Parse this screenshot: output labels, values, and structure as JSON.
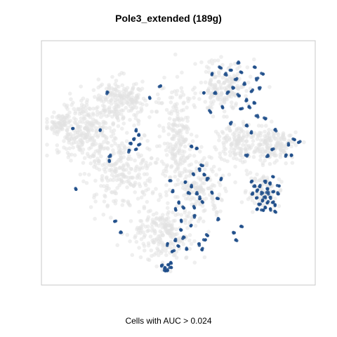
{
  "chart_data": {
    "type": "scatter",
    "title": "Pole3_extended (189g)",
    "xlabel": "Cells with AUC > 0.024",
    "ylabel": "",
    "grid": false,
    "legend": "none",
    "colors": {
      "background_cells": "#e2e2e2",
      "active_cells": "#1f4e8a",
      "frame": "#c8c8c8"
    },
    "background_clusters": [
      {
        "cx": 0.15,
        "cy": 0.36,
        "rx": 0.11,
        "ry": 0.12,
        "n": 280
      },
      {
        "cx": 0.28,
        "cy": 0.23,
        "rx": 0.11,
        "ry": 0.08,
        "n": 200
      },
      {
        "cx": 0.28,
        "cy": 0.52,
        "rx": 0.12,
        "ry": 0.14,
        "n": 240
      },
      {
        "cx": 0.5,
        "cy": 0.4,
        "rx": 0.06,
        "ry": 0.2,
        "n": 200
      },
      {
        "cx": 0.45,
        "cy": 0.8,
        "rx": 0.11,
        "ry": 0.11,
        "n": 230
      },
      {
        "cx": 0.58,
        "cy": 0.6,
        "rx": 0.09,
        "ry": 0.11,
        "n": 160
      },
      {
        "cx": 0.67,
        "cy": 0.17,
        "rx": 0.09,
        "ry": 0.1,
        "n": 180
      },
      {
        "cx": 0.74,
        "cy": 0.42,
        "rx": 0.09,
        "ry": 0.08,
        "n": 150
      },
      {
        "cx": 0.87,
        "cy": 0.42,
        "rx": 0.08,
        "ry": 0.06,
        "n": 140
      },
      {
        "cx": 0.82,
        "cy": 0.62,
        "rx": 0.06,
        "ry": 0.07,
        "n": 100
      },
      {
        "cx": 0.05,
        "cy": 0.34,
        "rx": 0.04,
        "ry": 0.04,
        "n": 50
      }
    ],
    "highlighted_points": [
      [
        0.66,
        0.09
      ],
      [
        0.68,
        0.12
      ],
      [
        0.7,
        0.1
      ],
      [
        0.72,
        0.14
      ],
      [
        0.74,
        0.11
      ],
      [
        0.75,
        0.16
      ],
      [
        0.71,
        0.18
      ],
      [
        0.69,
        0.2
      ],
      [
        0.73,
        0.21
      ],
      [
        0.76,
        0.23
      ],
      [
        0.78,
        0.19
      ],
      [
        0.77,
        0.26
      ],
      [
        0.74,
        0.27
      ],
      [
        0.79,
        0.09
      ],
      [
        0.8,
        0.14
      ],
      [
        0.82,
        0.12
      ],
      [
        0.81,
        0.18
      ],
      [
        0.79,
        0.24
      ],
      [
        0.73,
        0.07
      ],
      [
        0.63,
        0.12
      ],
      [
        0.64,
        0.2
      ],
      [
        0.6,
        0.2
      ],
      [
        0.62,
        0.28
      ],
      [
        0.67,
        0.26
      ],
      [
        0.7,
        0.33
      ],
      [
        0.76,
        0.34
      ],
      [
        0.8,
        0.3
      ],
      [
        0.78,
        0.37
      ],
      [
        0.83,
        0.31
      ],
      [
        0.43,
        0.17
      ],
      [
        0.23,
        0.2
      ],
      [
        0.39,
        0.22
      ],
      [
        0.1,
        0.35
      ],
      [
        0.2,
        0.36
      ],
      [
        0.34,
        0.36
      ],
      [
        0.35,
        0.38
      ],
      [
        0.33,
        0.4
      ],
      [
        0.32,
        0.42
      ],
      [
        0.34,
        0.44
      ],
      [
        0.35,
        0.42
      ],
      [
        0.31,
        0.45
      ],
      [
        0.24,
        0.47
      ],
      [
        0.24,
        0.49
      ],
      [
        0.55,
        0.43
      ],
      [
        0.57,
        0.44
      ],
      [
        0.59,
        0.51
      ],
      [
        0.58,
        0.53
      ],
      [
        0.56,
        0.55
      ],
      [
        0.6,
        0.55
      ],
      [
        0.61,
        0.57
      ],
      [
        0.53,
        0.58
      ],
      [
        0.55,
        0.6
      ],
      [
        0.54,
        0.63
      ],
      [
        0.57,
        0.63
      ],
      [
        0.58,
        0.65
      ],
      [
        0.59,
        0.67
      ],
      [
        0.63,
        0.63
      ],
      [
        0.65,
        0.65
      ],
      [
        0.66,
        0.57
      ],
      [
        0.56,
        0.69
      ],
      [
        0.65,
        0.74
      ],
      [
        0.52,
        0.69
      ],
      [
        0.76,
        0.47
      ],
      [
        0.84,
        0.47
      ],
      [
        0.86,
        0.44
      ],
      [
        0.91,
        0.47
      ],
      [
        0.92,
        0.42
      ],
      [
        0.94,
        0.4
      ],
      [
        0.96,
        0.41
      ],
      [
        0.87,
        0.36
      ],
      [
        0.93,
        0.47
      ],
      [
        0.78,
        0.58
      ],
      [
        0.79,
        0.6
      ],
      [
        0.81,
        0.6
      ],
      [
        0.8,
        0.62
      ],
      [
        0.82,
        0.63
      ],
      [
        0.84,
        0.63
      ],
      [
        0.83,
        0.65
      ],
      [
        0.85,
        0.65
      ],
      [
        0.82,
        0.66
      ],
      [
        0.84,
        0.67
      ],
      [
        0.86,
        0.67
      ],
      [
        0.81,
        0.68
      ],
      [
        0.83,
        0.69
      ],
      [
        0.85,
        0.7
      ],
      [
        0.87,
        0.68
      ],
      [
        0.86,
        0.62
      ],
      [
        0.88,
        0.63
      ],
      [
        0.8,
        0.65
      ],
      [
        0.84,
        0.61
      ],
      [
        0.82,
        0.7
      ],
      [
        0.85,
        0.59
      ],
      [
        0.88,
        0.6
      ],
      [
        0.87,
        0.71
      ],
      [
        0.8,
        0.7
      ],
      [
        0.78,
        0.63
      ],
      [
        0.86,
        0.56
      ],
      [
        0.83,
        0.58
      ],
      [
        0.11,
        0.61
      ],
      [
        0.47,
        0.58
      ],
      [
        0.48,
        0.62
      ],
      [
        0.5,
        0.67
      ],
      [
        0.49,
        0.7
      ],
      [
        0.56,
        0.73
      ],
      [
        0.55,
        0.77
      ],
      [
        0.51,
        0.79
      ],
      [
        0.52,
        0.82
      ],
      [
        0.49,
        0.83
      ],
      [
        0.5,
        0.86
      ],
      [
        0.46,
        0.85
      ],
      [
        0.48,
        0.88
      ],
      [
        0.53,
        0.87
      ],
      [
        0.58,
        0.85
      ],
      [
        0.6,
        0.83
      ],
      [
        0.61,
        0.81
      ],
      [
        0.59,
        0.87
      ],
      [
        0.26,
        0.75
      ],
      [
        0.28,
        0.8
      ],
      [
        0.51,
        0.75
      ],
      [
        0.44,
        0.94
      ],
      [
        0.45,
        0.95
      ],
      [
        0.46,
        0.94
      ],
      [
        0.47,
        0.95
      ],
      [
        0.45,
        0.96
      ],
      [
        0.47,
        0.93
      ],
      [
        0.46,
        0.96
      ],
      [
        0.71,
        0.8
      ],
      [
        0.74,
        0.77
      ],
      [
        0.72,
        0.83
      ]
    ]
  }
}
